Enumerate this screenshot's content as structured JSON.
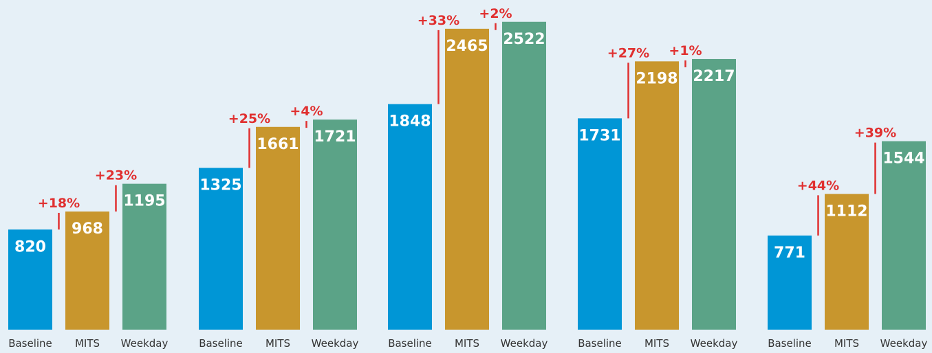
{
  "chart_data": {
    "type": "bar",
    "categories": [
      null,
      null,
      null,
      null,
      null
    ],
    "series": [
      {
        "name": "Baseline",
        "color": "#0096d6",
        "values": [
          820,
          1325,
          1848,
          1731,
          771
        ]
      },
      {
        "name": "MITS",
        "color": "#c8962d",
        "values": [
          968,
          1661,
          2465,
          2198,
          1112
        ],
        "changes": [
          18,
          25,
          33,
          27,
          44
        ],
        "change_labels": [
          "+18%",
          "+25%",
          "+33%",
          "+27%",
          "+44%"
        ]
      },
      {
        "name": "Weekday",
        "color": "#5ba387",
        "values": [
          1195,
          1721,
          2522,
          2217,
          1544
        ],
        "changes": [
          23,
          4,
          2,
          1,
          39
        ],
        "change_labels": [
          "+23%",
          "+4%",
          "+2%",
          "+1%",
          "+39%"
        ]
      }
    ],
    "ylim": [
      0,
      2650
    ],
    "annotation_color": "#e03030"
  }
}
